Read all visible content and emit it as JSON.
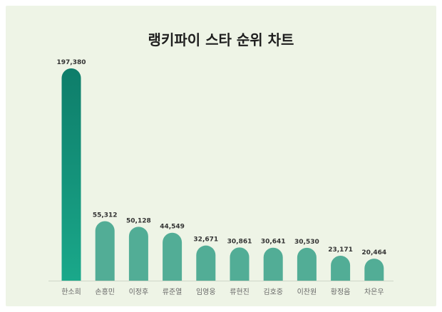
{
  "chart_data": {
    "type": "bar",
    "title": "랭키파이 스타 순위 차트",
    "categories": [
      "한소희",
      "손흥민",
      "이정후",
      "류준열",
      "임영웅",
      "류현진",
      "김호중",
      "이찬원",
      "황정음",
      "차은우"
    ],
    "values": [
      197380,
      55312,
      50128,
      44549,
      32671,
      30861,
      30641,
      30530,
      23171,
      20464
    ],
    "value_labels": [
      "197,380",
      "55,312",
      "50,128",
      "44,549",
      "32,671",
      "30,861",
      "30,641",
      "30,530",
      "23,171",
      "20,464"
    ],
    "xlabel": "",
    "ylabel": "",
    "ylim": [
      0,
      197380
    ],
    "grid": false,
    "legend": "none",
    "colors": {
      "highlight_top": "#0e7d6a",
      "highlight_bottom": "#1aa88a",
      "bar": "#52ad96",
      "background": "#eef4e6"
    }
  }
}
